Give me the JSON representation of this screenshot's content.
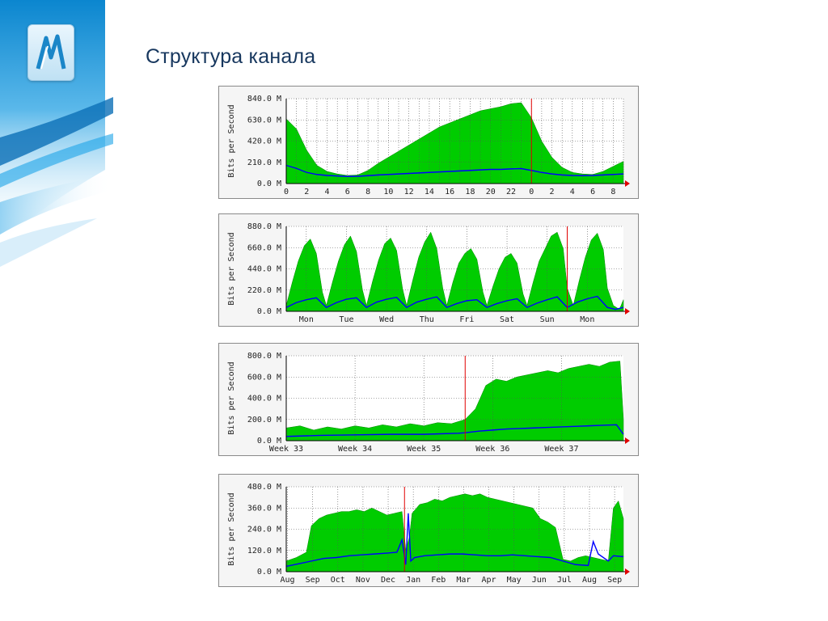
{
  "slide": {
    "title": "Структура канала"
  },
  "decor": {
    "logo_icon": "mm-logo-icon",
    "accent": "#1aa3e8"
  },
  "chart_data": [
    {
      "type": "area",
      "period": "daily",
      "ylabel": "Bits per Second",
      "ylim": [
        0,
        840
      ],
      "ytick_labels": [
        "0.0 M",
        "210.0 M",
        "420.0 M",
        "630.0 M",
        "840.0 M"
      ],
      "xlim": [
        0,
        33
      ],
      "x_tick_labels": [
        "0",
        "2",
        "4",
        "6",
        "8",
        "10",
        "12",
        "14",
        "16",
        "18",
        "20",
        "22",
        "0",
        "2",
        "4",
        "6",
        "8"
      ],
      "marker": [
        24
      ],
      "series": [
        {
          "type": "area",
          "color": "#00cc00",
          "x": [
            0,
            1,
            2,
            3,
            4,
            5,
            6,
            7,
            8,
            9,
            10,
            11,
            12,
            13,
            14,
            15,
            16,
            17,
            18,
            19,
            20,
            21,
            22,
            23,
            24,
            25,
            26,
            27,
            28,
            29,
            30,
            31,
            32,
            33
          ],
          "values": [
            640,
            540,
            330,
            180,
            120,
            95,
            80,
            85,
            130,
            200,
            260,
            320,
            380,
            440,
            500,
            560,
            600,
            640,
            680,
            720,
            740,
            760,
            790,
            800,
            650,
            420,
            260,
            160,
            110,
            95,
            90,
            120,
            170,
            220
          ]
        },
        {
          "type": "line",
          "color": "#0000ff",
          "x": [
            0,
            1,
            2,
            3,
            4,
            5,
            6,
            7,
            8,
            9,
            10,
            11,
            12,
            13,
            14,
            15,
            16,
            17,
            18,
            19,
            20,
            21,
            22,
            23,
            24,
            25,
            26,
            27,
            28,
            29,
            30,
            31,
            32,
            33
          ],
          "values": [
            180,
            150,
            110,
            90,
            80,
            75,
            70,
            72,
            78,
            85,
            90,
            95,
            100,
            105,
            110,
            115,
            120,
            125,
            130,
            135,
            140,
            140,
            145,
            148,
            130,
            110,
            95,
            85,
            80,
            78,
            80,
            85,
            90,
            95
          ]
        }
      ]
    },
    {
      "type": "area",
      "period": "weekly",
      "ylabel": "Bits per Second",
      "ylim": [
        0,
        880
      ],
      "ytick_labels": [
        "0.0 M",
        "220.0 M",
        "440.0 M",
        "660.0 M",
        "880.0 M"
      ],
      "xlim": [
        0,
        8.4
      ],
      "x_tick_labels": [
        "Mon",
        "Tue",
        "Wed",
        "Thu",
        "Fri",
        "Sat",
        "Sun",
        "Mon"
      ],
      "x_tick_positions": [
        0.5,
        1.5,
        2.5,
        3.5,
        4.5,
        5.5,
        6.5,
        7.5
      ],
      "marker": [
        7.0
      ],
      "series": [
        {
          "type": "area",
          "color": "#00cc00",
          "x": [
            0,
            0.15,
            0.3,
            0.45,
            0.6,
            0.75,
            0.9,
            1.0,
            1.15,
            1.3,
            1.45,
            1.6,
            1.75,
            1.9,
            2.0,
            2.15,
            2.3,
            2.45,
            2.6,
            2.75,
            2.9,
            3.0,
            3.15,
            3.3,
            3.45,
            3.6,
            3.75,
            3.9,
            4.0,
            4.15,
            4.3,
            4.45,
            4.6,
            4.75,
            4.9,
            5.0,
            5.15,
            5.3,
            5.45,
            5.6,
            5.75,
            5.9,
            6.0,
            6.15,
            6.3,
            6.45,
            6.6,
            6.75,
            6.9,
            7.0,
            7.15,
            7.3,
            7.45,
            7.6,
            7.75,
            7.9,
            8.0,
            8.15,
            8.3,
            8.4
          ],
          "values": [
            60,
            300,
            520,
            680,
            750,
            600,
            200,
            60,
            300,
            520,
            690,
            780,
            620,
            220,
            60,
            310,
            530,
            700,
            760,
            630,
            230,
            60,
            320,
            560,
            720,
            820,
            650,
            240,
            60,
            300,
            500,
            600,
            650,
            540,
            200,
            60,
            260,
            440,
            560,
            600,
            500,
            180,
            60,
            300,
            520,
            650,
            780,
            820,
            650,
            240,
            60,
            320,
            560,
            740,
            810,
            640,
            240,
            60,
            20,
            120
          ]
        },
        {
          "type": "line",
          "color": "#0000ff",
          "x": [
            0,
            0.25,
            0.5,
            0.75,
            1.0,
            1.25,
            1.5,
            1.75,
            2.0,
            2.25,
            2.5,
            2.75,
            3.0,
            3.25,
            3.5,
            3.75,
            4.0,
            4.25,
            4.5,
            4.75,
            5.0,
            5.25,
            5.5,
            5.75,
            6.0,
            6.25,
            6.5,
            6.75,
            7.0,
            7.25,
            7.5,
            7.75,
            8.0,
            8.2,
            8.4
          ],
          "values": [
            40,
            90,
            120,
            140,
            40,
            90,
            125,
            140,
            40,
            95,
            125,
            145,
            40,
            95,
            125,
            150,
            40,
            80,
            110,
            120,
            40,
            80,
            110,
            130,
            40,
            85,
            120,
            150,
            40,
            95,
            130,
            155,
            40,
            20,
            40
          ]
        }
      ]
    },
    {
      "type": "area",
      "period": "monthly",
      "ylabel": "Bits per Second",
      "ylim": [
        0,
        800
      ],
      "ytick_labels": [
        "0.0 M",
        "200.0 M",
        "400.0 M",
        "600.0 M",
        "800.0 M"
      ],
      "xlim": [
        0,
        4.9
      ],
      "x_tick_labels": [
        "Week 33",
        "Week 34",
        "Week 35",
        "Week 36",
        "Week 37"
      ],
      "x_tick_positions": [
        0,
        1,
        2,
        3,
        4
      ],
      "marker": [
        2.6
      ],
      "series": [
        {
          "type": "area",
          "color": "#00cc00",
          "x": [
            0,
            0.2,
            0.4,
            0.6,
            0.8,
            1.0,
            1.2,
            1.4,
            1.6,
            1.8,
            2.0,
            2.2,
            2.4,
            2.6,
            2.75,
            2.9,
            3.05,
            3.2,
            3.35,
            3.5,
            3.65,
            3.8,
            3.95,
            4.1,
            4.25,
            4.4,
            4.55,
            4.7,
            4.85,
            4.9
          ],
          "values": [
            120,
            140,
            100,
            130,
            110,
            140,
            120,
            150,
            130,
            160,
            140,
            170,
            160,
            200,
            300,
            520,
            580,
            560,
            600,
            620,
            640,
            660,
            640,
            680,
            700,
            720,
            700,
            740,
            750,
            200
          ]
        },
        {
          "type": "line",
          "color": "#0000ff",
          "x": [
            0,
            0.5,
            1.0,
            1.5,
            2.0,
            2.5,
            2.6,
            2.8,
            3.0,
            3.2,
            3.4,
            3.6,
            3.8,
            4.0,
            4.2,
            4.4,
            4.6,
            4.8,
            4.9
          ],
          "values": [
            40,
            50,
            55,
            60,
            60,
            70,
            75,
            90,
            100,
            110,
            115,
            120,
            125,
            130,
            135,
            140,
            145,
            150,
            60
          ]
        }
      ]
    },
    {
      "type": "area",
      "period": "yearly",
      "ylabel": "Bits per Second",
      "ylim": [
        0,
        480
      ],
      "ytick_labels": [
        "0.0 M",
        "120.0 M",
        "240.0 M",
        "360.0 M",
        "480.0 M"
      ],
      "xlim": [
        0,
        13.4
      ],
      "x_tick_labels": [
        "Aug",
        "Sep",
        "Oct",
        "Nov",
        "Dec",
        "Jan",
        "Feb",
        "Mar",
        "Apr",
        "May",
        "Jun",
        "Jul",
        "Aug",
        "Sep"
      ],
      "x_tick_positions": [
        0.05,
        1.05,
        2.05,
        3.05,
        4.05,
        5.05,
        6.05,
        7.05,
        8.05,
        9.05,
        10.05,
        11.05,
        12.05,
        13.05
      ],
      "marker": [
        4.7
      ],
      "series": [
        {
          "type": "area",
          "color": "#00cc00",
          "x": [
            0,
            0.4,
            0.8,
            1.0,
            1.3,
            1.6,
            1.9,
            2.2,
            2.5,
            2.8,
            3.1,
            3.4,
            3.7,
            4.0,
            4.3,
            4.6,
            4.75,
            4.9,
            5.0,
            5.3,
            5.6,
            5.9,
            6.2,
            6.5,
            6.8,
            7.1,
            7.4,
            7.7,
            8.0,
            8.3,
            8.6,
            8.9,
            9.2,
            9.5,
            9.8,
            10.1,
            10.4,
            10.7,
            11.0,
            11.3,
            11.6,
            11.9,
            12.2,
            12.5,
            12.8,
            13.0,
            13.2,
            13.4
          ],
          "values": [
            60,
            80,
            110,
            260,
            300,
            320,
            330,
            340,
            340,
            350,
            340,
            360,
            340,
            320,
            330,
            340,
            120,
            200,
            330,
            380,
            390,
            410,
            400,
            420,
            430,
            440,
            430,
            440,
            420,
            410,
            400,
            390,
            380,
            370,
            360,
            300,
            280,
            250,
            70,
            60,
            80,
            90,
            80,
            70,
            60,
            360,
            400,
            300
          ]
        },
        {
          "type": "line",
          "color": "#0000ff",
          "x": [
            0,
            0.5,
            1.0,
            1.5,
            2.0,
            2.5,
            3.0,
            3.5,
            4.0,
            4.4,
            4.6,
            4.75,
            4.85,
            4.95,
            5.1,
            5.5,
            6.0,
            6.5,
            7.0,
            7.5,
            8.0,
            8.5,
            9.0,
            9.5,
            10.0,
            10.5,
            11.0,
            11.5,
            12.0,
            12.2,
            12.4,
            12.8,
            13.0,
            13.4
          ],
          "values": [
            30,
            45,
            60,
            75,
            80,
            90,
            95,
            100,
            105,
            110,
            180,
            40,
            330,
            60,
            80,
            90,
            95,
            100,
            100,
            95,
            90,
            90,
            95,
            90,
            85,
            80,
            60,
            40,
            35,
            170,
            100,
            60,
            90,
            85
          ]
        }
      ]
    }
  ]
}
